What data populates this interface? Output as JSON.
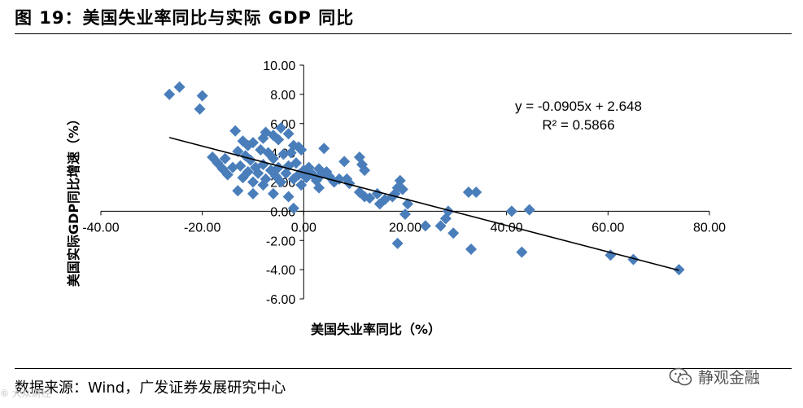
{
  "figure": {
    "title": "图 19：美国失业率同比与实际 GDP 同比",
    "source": "数据来源：Wind，广发证券发展研究中心",
    "wechat_label": "静观金融",
    "watermark": "⑥ 大众财经"
  },
  "chart_data": {
    "type": "scatter",
    "xlabel": "美国失业率同比（%）",
    "ylabel": "美国实际GDP同比增速（%）",
    "xlim": [
      -40,
      80
    ],
    "ylim": [
      -6,
      10
    ],
    "x_ticks": [
      "-40.00",
      "-20.00",
      "0.00",
      "20.00",
      "40.00",
      "60.00",
      "80.00"
    ],
    "y_ticks": [
      "10.00",
      "8.00",
      "6.00",
      "4.00",
      "2.00",
      "0.00",
      "-2.00",
      "-4.00",
      "-6.00"
    ],
    "trendline": {
      "slope": -0.0905,
      "intercept": 2.648,
      "x_range": [
        -26.5,
        74
      ]
    },
    "equation": "y = -0.0905x + 2.648",
    "r_squared": "R² = 0.5866",
    "marker_color": "#4a7ebb",
    "points": [
      [
        -26.5,
        8.0
      ],
      [
        -24.5,
        8.5
      ],
      [
        -20.5,
        7.0
      ],
      [
        -20.0,
        7.9
      ],
      [
        -13.5,
        5.5
      ],
      [
        -12.0,
        4.8
      ],
      [
        -11.0,
        4.5
      ],
      [
        -10.0,
        4.7
      ],
      [
        -8.0,
        5.0
      ],
      [
        -7.5,
        5.4
      ],
      [
        -6.0,
        5.2
      ],
      [
        -5.0,
        4.9
      ],
      [
        -4.5,
        5.7
      ],
      [
        -3.0,
        5.3
      ],
      [
        -2.0,
        4.5
      ],
      [
        -1.0,
        4.4
      ],
      [
        -0.5,
        4.2
      ],
      [
        -18.0,
        3.7
      ],
      [
        -17.0,
        3.3
      ],
      [
        -16.0,
        2.9
      ],
      [
        -15.5,
        3.6
      ],
      [
        -15.0,
        2.5
      ],
      [
        -14.0,
        3.0
      ],
      [
        -13.0,
        4.1
      ],
      [
        -12.5,
        3.1
      ],
      [
        -12.0,
        2.3
      ],
      [
        -11.5,
        3.8
      ],
      [
        -11.0,
        2.7
      ],
      [
        -10.5,
        3.5
      ],
      [
        -10.0,
        2.0
      ],
      [
        -9.5,
        3.0
      ],
      [
        -9.0,
        2.6
      ],
      [
        -8.5,
        4.2
      ],
      [
        -8.0,
        3.2
      ],
      [
        -7.5,
        2.2
      ],
      [
        -7.0,
        4.0
      ],
      [
        -6.5,
        2.8
      ],
      [
        -6.0,
        3.6
      ],
      [
        -5.5,
        2.4
      ],
      [
        -5.0,
        3.0
      ],
      [
        -4.5,
        2.0
      ],
      [
        -4.0,
        3.9
      ],
      [
        -3.5,
        2.6
      ],
      [
        -3.0,
        3.1
      ],
      [
        -2.5,
        4.0
      ],
      [
        -2.0,
        2.2
      ],
      [
        -1.5,
        3.3
      ],
      [
        -1.0,
        2.5
      ],
      [
        -0.5,
        1.8
      ],
      [
        0.0,
        2.8
      ],
      [
        0.5,
        2.3
      ],
      [
        1.0,
        3.0
      ],
      [
        1.5,
        2.6
      ],
      [
        2.0,
        2.4
      ],
      [
        2.5,
        2.1
      ],
      [
        3.0,
        2.9
      ],
      [
        3.5,
        2.5
      ],
      [
        4.0,
        4.3
      ],
      [
        4.5,
        2.7
      ],
      [
        5.0,
        2.4
      ],
      [
        6.0,
        2.0
      ],
      [
        7.0,
        2.2
      ],
      [
        8.0,
        3.4
      ],
      [
        8.5,
        2.2
      ],
      [
        9.0,
        1.9
      ],
      [
        -13.0,
        1.4
      ],
      [
        -10.0,
        1.2
      ],
      [
        -8.0,
        1.8
      ],
      [
        -6.0,
        1.2
      ],
      [
        -3.0,
        1.0
      ],
      [
        -2.0,
        0.2
      ],
      [
        3.0,
        1.6
      ],
      [
        11.0,
        3.7
      ],
      [
        11.5,
        3.2
      ],
      [
        12.0,
        2.8
      ],
      [
        11.0,
        1.3
      ],
      [
        12.0,
        1.0
      ],
      [
        13.0,
        0.9
      ],
      [
        14.5,
        1.2
      ],
      [
        15.0,
        0.5
      ],
      [
        16.0,
        0.8
      ],
      [
        17.5,
        1.0
      ],
      [
        18.0,
        1.2
      ],
      [
        18.5,
        1.6
      ],
      [
        19.0,
        2.1
      ],
      [
        19.5,
        1.5
      ],
      [
        20.5,
        0.5
      ],
      [
        20.0,
        -0.2
      ],
      [
        18.5,
        -2.2
      ],
      [
        24.0,
        -1.0
      ],
      [
        27.0,
        -1.0
      ],
      [
        28.0,
        -0.5
      ],
      [
        28.5,
        0.0
      ],
      [
        29.5,
        -1.5
      ],
      [
        32.5,
        1.3
      ],
      [
        34.0,
        1.3
      ],
      [
        33.0,
        -2.6
      ],
      [
        41.0,
        0.0
      ],
      [
        43.0,
        -2.8
      ],
      [
        44.5,
        0.1
      ],
      [
        60.5,
        -3.0
      ],
      [
        65.0,
        -3.3
      ],
      [
        74.0,
        -4.0
      ]
    ]
  }
}
